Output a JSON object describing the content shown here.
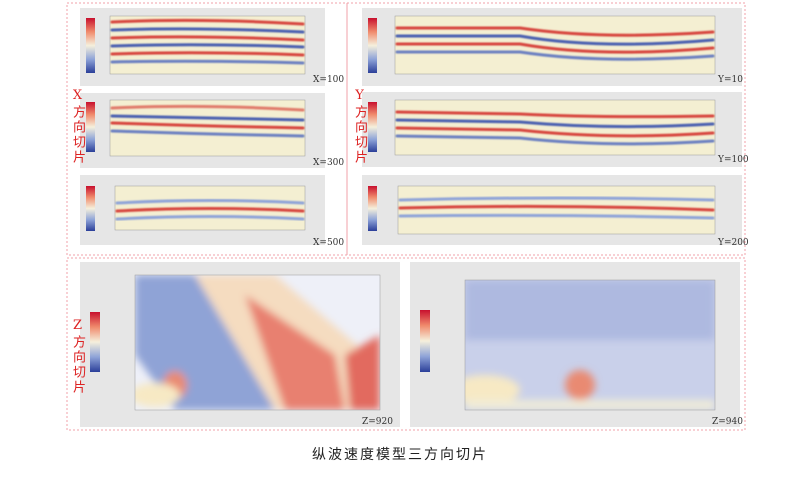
{
  "side_labels": {
    "x": "X方向切片",
    "y": "Y方向切片",
    "z": "Z方向切片"
  },
  "panels": [
    {
      "label": "X=100"
    },
    {
      "label": "X=300"
    },
    {
      "label": "X=500"
    },
    {
      "label": "Y=10"
    },
    {
      "label": "Y=100"
    },
    {
      "label": "Y=200"
    },
    {
      "label": "Z=920"
    },
    {
      "label": "Z=940"
    }
  ],
  "caption": "纵波速度模型三方向切片"
}
